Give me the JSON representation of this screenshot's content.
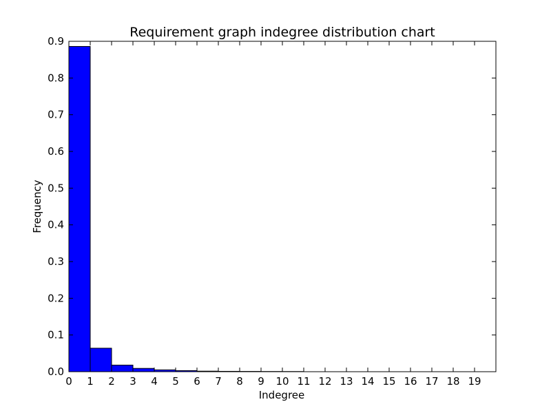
{
  "chart_data": {
    "type": "bar",
    "title": "Requirement graph indegree distribution chart",
    "xlabel": "Indegree",
    "ylabel": "Frequency",
    "xlim": [
      0,
      20
    ],
    "ylim": [
      0,
      0.9
    ],
    "x_ticks": [
      "0",
      "1",
      "2",
      "3",
      "4",
      "5",
      "6",
      "7",
      "8",
      "9",
      "10",
      "11",
      "12",
      "13",
      "14",
      "15",
      "16",
      "17",
      "18",
      "19"
    ],
    "y_ticks": [
      "0.0",
      "0.1",
      "0.2",
      "0.3",
      "0.4",
      "0.5",
      "0.6",
      "0.7",
      "0.8",
      "0.9"
    ],
    "bins": [
      {
        "x_start": 0,
        "x_end": 1,
        "value": 0.886
      },
      {
        "x_start": 1,
        "x_end": 2,
        "value": 0.064
      },
      {
        "x_start": 2,
        "x_end": 3,
        "value": 0.018
      },
      {
        "x_start": 3,
        "x_end": 4,
        "value": 0.009
      },
      {
        "x_start": 4,
        "x_end": 5,
        "value": 0.005
      },
      {
        "x_start": 5,
        "x_end": 6,
        "value": 0.003
      },
      {
        "x_start": 6,
        "x_end": 7,
        "value": 0.0015
      },
      {
        "x_start": 7,
        "x_end": 8,
        "value": 0.001
      },
      {
        "x_start": 8,
        "x_end": 9,
        "value": 0.0008
      },
      {
        "x_start": 9,
        "x_end": 10,
        "value": 0.0006
      },
      {
        "x_start": 10,
        "x_end": 11,
        "value": 0.0005
      }
    ],
    "grid": false,
    "bar_color": "#0000ff",
    "edge_color": "#000000"
  }
}
